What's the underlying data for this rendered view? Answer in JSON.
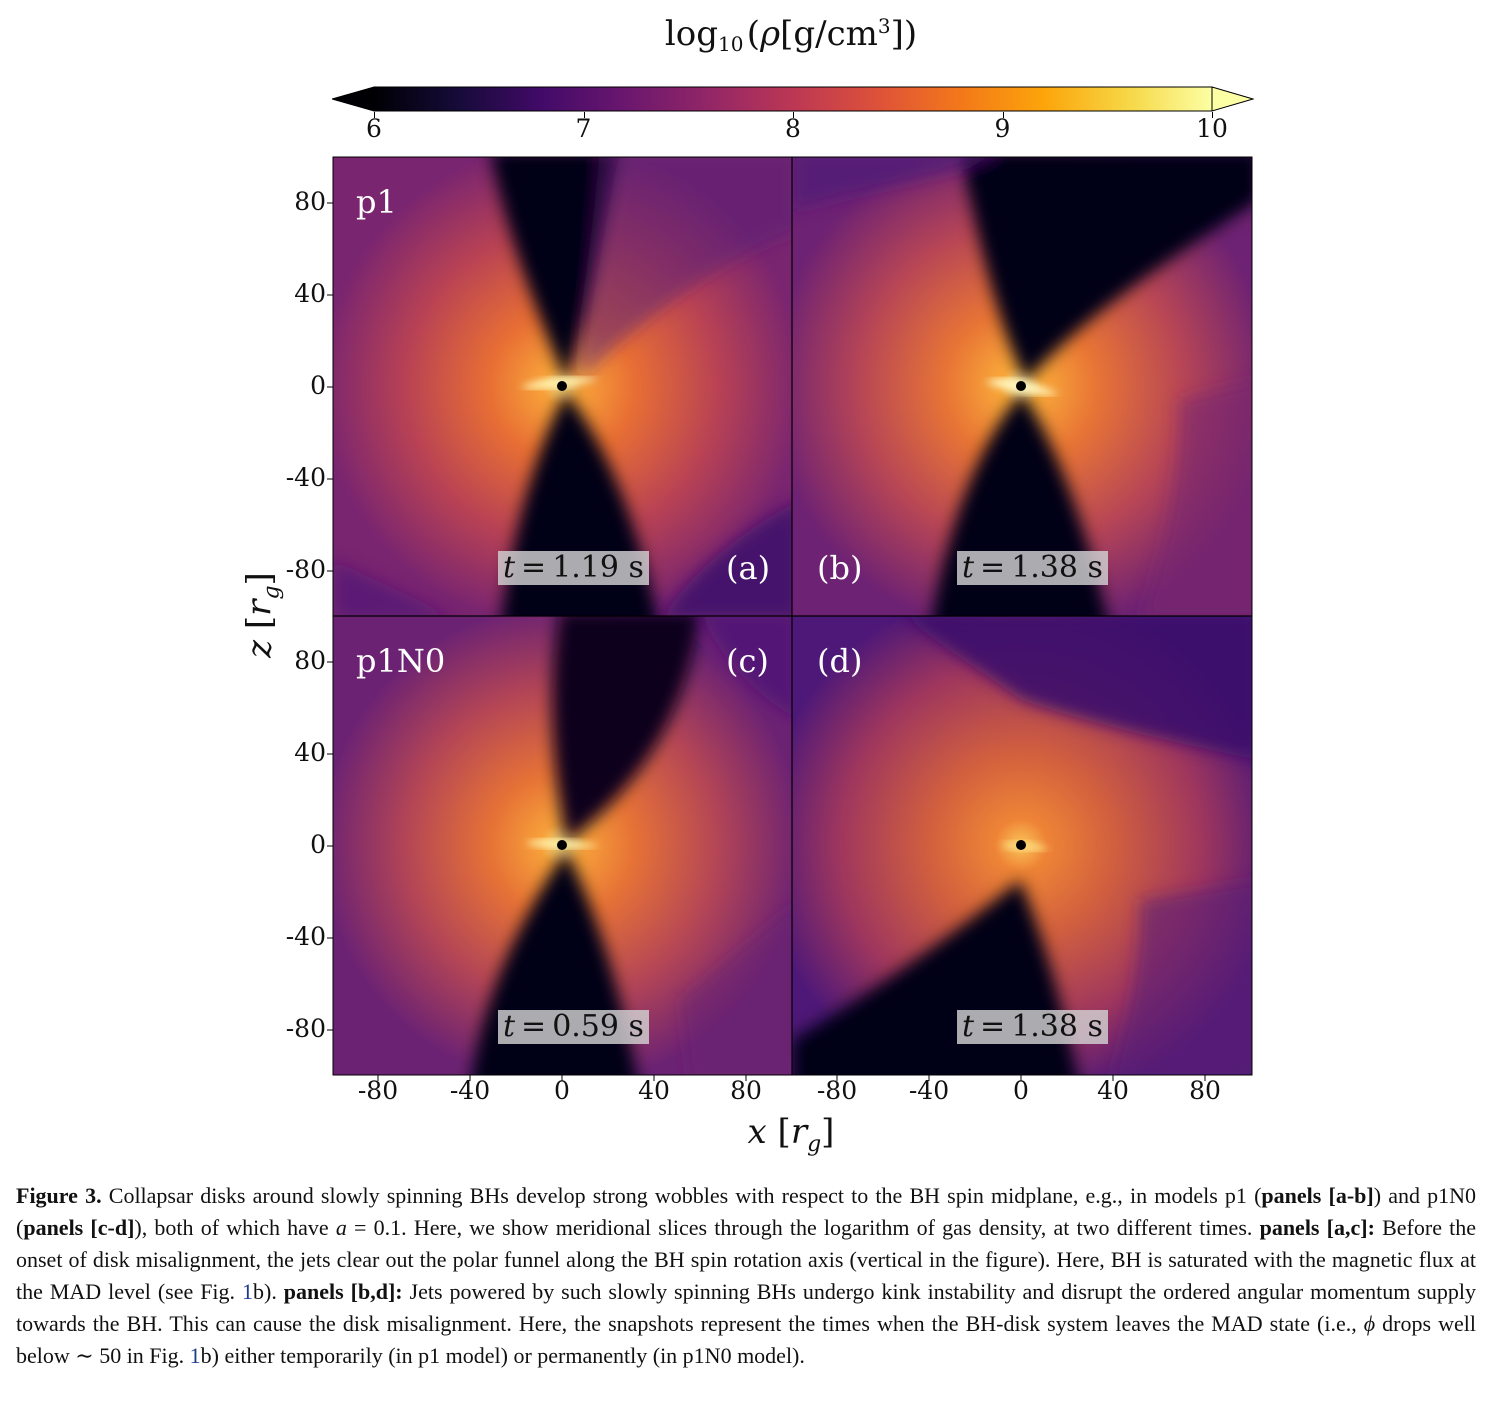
{
  "colorbar": {
    "label_prefix": "log",
    "label_sub": "10",
    "label_var": "ρ",
    "label_unit": "g/cm",
    "label_sup": "3",
    "ticks": [
      "6",
      "7",
      "8",
      "9",
      "10"
    ],
    "range": [
      6,
      10
    ],
    "colormap": "inferno",
    "extend": "both"
  },
  "axes": {
    "y_ticks": [
      "80",
      "40",
      "0",
      "-40",
      "-80"
    ],
    "x_ticks": [
      "-80",
      "-40",
      "0",
      "40",
      "80"
    ],
    "xlabel_var": "x",
    "ylabel_var": "z",
    "unit_var": "r",
    "unit_sub": "g"
  },
  "panels": [
    {
      "id": "a",
      "label": "(a)",
      "model": "p1",
      "time_var": "t",
      "time_text": "1.19 s"
    },
    {
      "id": "b",
      "label": "(b)",
      "model": "",
      "time_var": "t",
      "time_text": "1.38 s"
    },
    {
      "id": "c",
      "label": "(c)",
      "model": "p1N0",
      "time_var": "t",
      "time_text": "0.59 s"
    },
    {
      "id": "d",
      "label": "(d)",
      "model": "",
      "time_var": "t",
      "time_text": "1.38 s"
    }
  ],
  "caption": {
    "figure_label": "Figure 3.",
    "s1": "Collapsar disks around slowly spinning BHs develop strong wobbles with respect to the BH spin midplane, e.g., in models p1 (",
    "b1": "panels [a-b]",
    "s2": ") and p1N0 (",
    "b2": "panels [c-d]",
    "s3": "), both of which have ",
    "a_var": "a",
    "s4": " = 0.1.  Here, we show meridional slices through the logarithm of gas density, at two different times.  ",
    "b3": "panels [a,c]:",
    "s5": " Before the onset of disk misalignment, the jets clear out the polar funnel along the BH spin rotation axis (vertical in the figure).  Here, BH is saturated with the magnetic flux at the MAD level (see Fig. ",
    "ref1": "1",
    "s6": "b).  ",
    "b4": "panels [b,d]:",
    "s7": " Jets powered by such slowly spinning BHs undergo kink instability and disrupt the ordered angular momentum supply towards the BH. This can cause the disk misalignment. Here, the snapshots represent the times when the BH-disk system leaves the MAD state (i.e., ",
    "phi_var": "ϕ",
    "s8": " drops well below ∼ 50 in Fig. ",
    "ref2": "1",
    "s9": "b) either temporarily (in p1 model) or permanently (in p1N0 model)."
  }
}
